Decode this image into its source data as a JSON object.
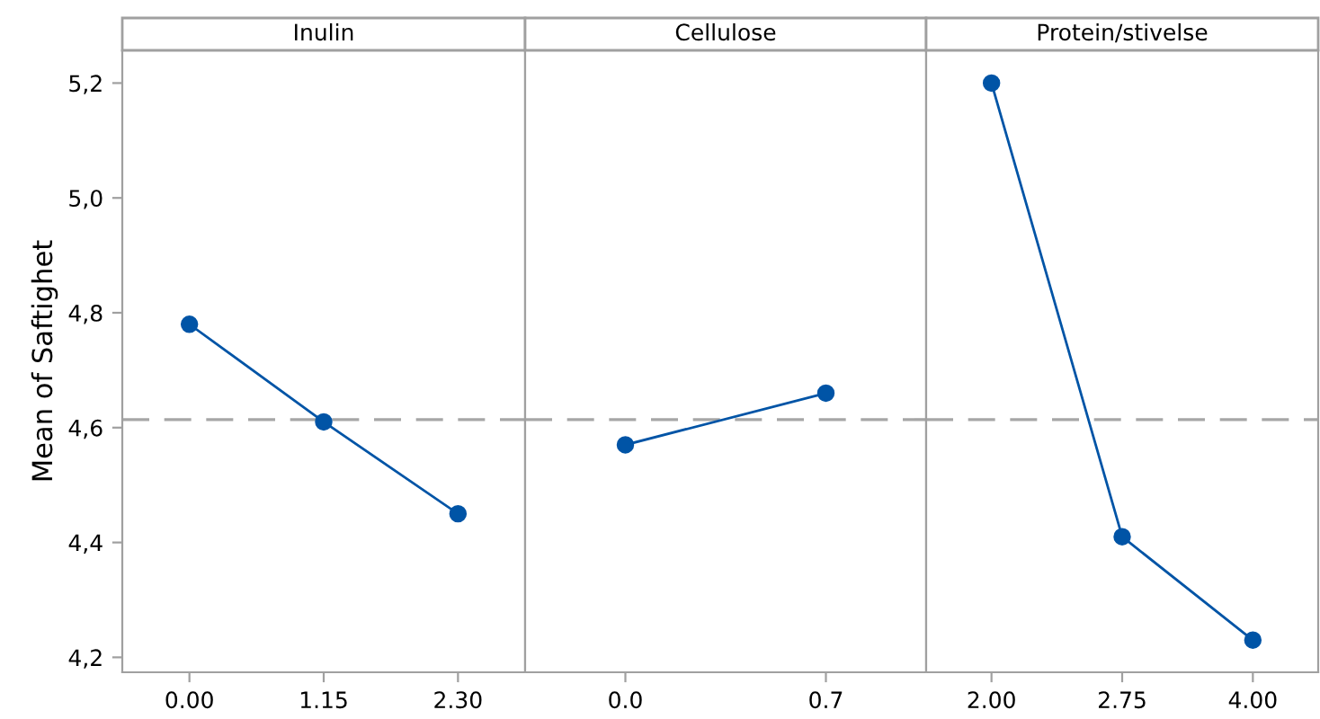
{
  "chart_data": [
    {
      "type": "line",
      "title": "Inulin",
      "ylabel": "Mean of Saftighet",
      "categories": [
        "0.00",
        "1.15",
        "2.30"
      ],
      "values": [
        4.78,
        4.61,
        4.45
      ],
      "color": "#0054a6",
      "marker": "circle",
      "ylim": [
        4.174,
        5.257
      ],
      "yticks": [
        {
          "value": 4.2,
          "label": "4,2"
        },
        {
          "value": 4.4,
          "label": "4,4"
        },
        {
          "value": 4.6,
          "label": "4,6"
        },
        {
          "value": 4.8,
          "label": "4,8"
        },
        {
          "value": 5.0,
          "label": "5,0"
        },
        {
          "value": 5.2,
          "label": "5,2"
        }
      ],
      "ref_lines": [
        {
          "axis": "y",
          "value": 4.614,
          "color": "#a6a6a6",
          "line_style": "dashed"
        }
      ],
      "grid": false
    },
    {
      "type": "line",
      "title": "Cellulose",
      "categories": [
        "0.0",
        "0.7"
      ],
      "values": [
        4.57,
        4.66
      ],
      "color": "#0054a6",
      "marker": "circle",
      "ylim": [
        4.174,
        5.257
      ],
      "tick_labels": "x",
      "ref_lines": [
        {
          "axis": "y",
          "value": 4.614,
          "color": "#a6a6a6",
          "line_style": "dashed"
        }
      ],
      "grid": false
    },
    {
      "type": "line",
      "title": "Protein/stivelse",
      "categories": [
        "2.00",
        "2.75",
        "4.00"
      ],
      "values": [
        5.2,
        4.41,
        4.23
      ],
      "color": "#0054a6",
      "marker": "circle",
      "ylim": [
        4.174,
        5.257
      ],
      "tick_labels": "x",
      "ref_lines": [
        {
          "axis": "y",
          "value": 4.614,
          "color": "#a6a6a6",
          "line_style": "dashed"
        }
      ],
      "grid": false
    }
  ]
}
